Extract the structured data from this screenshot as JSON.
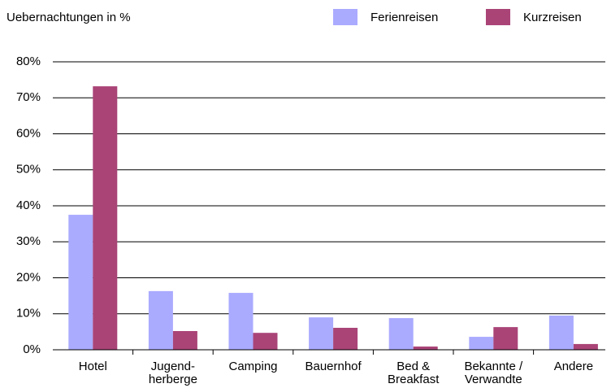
{
  "chart_data": {
    "type": "bar",
    "y_axis_label": "Uebernachtungen in %",
    "categories": [
      [
        "Hotel"
      ],
      [
        "Jugend-",
        "herberge"
      ],
      [
        "Camping"
      ],
      [
        "Bauernhof"
      ],
      [
        "Bed &",
        "Breakfast"
      ],
      [
        "Bekannte /",
        "Verwandte"
      ],
      [
        "Andere"
      ]
    ],
    "series": [
      {
        "name": "Ferienreisen",
        "color": "#aaaaff",
        "values": [
          37.5,
          16.3,
          15.8,
          9.0,
          8.8,
          3.6,
          9.5
        ]
      },
      {
        "name": "Kurzreisen",
        "color": "#aa4477",
        "values": [
          73.2,
          5.2,
          4.7,
          6.1,
          0.9,
          6.3,
          1.6
        ]
      }
    ],
    "ylim": [
      0,
      80
    ],
    "yticks": [
      {
        "value": 0,
        "label": "0%"
      },
      {
        "value": 10,
        "label": "10%"
      },
      {
        "value": 20,
        "label": "20%"
      },
      {
        "value": 30,
        "label": "30%"
      },
      {
        "value": 40,
        "label": "40%"
      },
      {
        "value": 50,
        "label": "50%"
      },
      {
        "value": 60,
        "label": "60%"
      },
      {
        "value": 70,
        "label": "70%"
      },
      {
        "value": 80,
        "label": "80%"
      }
    ],
    "grid": true,
    "legend": "top-right"
  }
}
